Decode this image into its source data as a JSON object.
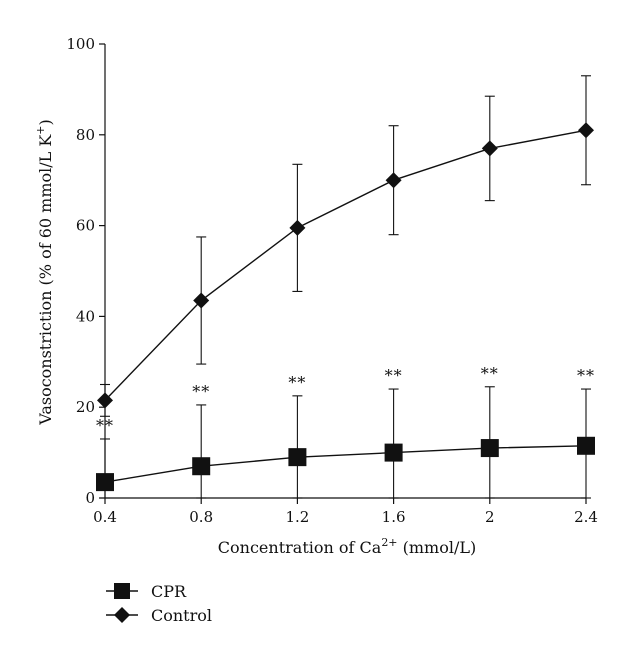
{
  "chart_data": {
    "type": "line",
    "xlabel": {
      "prefix": "Concentration of Ca",
      "sup": "2+",
      "suffix": " (mmol/L)"
    },
    "ylabel": {
      "prefix": "Vasoconstriction (% of 60 mmol/L K",
      "sup": "+",
      "suffix": ")"
    },
    "x": [
      0.4,
      0.8,
      1.2,
      1.6,
      2,
      2.4
    ],
    "x_tick_labels": [
      "0.4",
      "0.8",
      "1.2",
      "1.6",
      "2",
      "2.4"
    ],
    "xlim": [
      0.4,
      2.4
    ],
    "ylim": [
      0,
      100
    ],
    "y_ticks": [
      0,
      20,
      40,
      60,
      80,
      100
    ],
    "y_tick_labels": [
      "0",
      "20",
      "40",
      "60",
      "80",
      "100"
    ],
    "grid": false,
    "legend_position": "bottom-left",
    "series": [
      {
        "name": "CPR",
        "marker": "square",
        "values": [
          3.5,
          7,
          9,
          10,
          11,
          11.5
        ],
        "error": [
          9.5,
          13.5,
          13.5,
          14,
          13.5,
          12.5
        ],
        "annotations": [
          "**",
          "**",
          "**",
          "**",
          "**",
          "**"
        ]
      },
      {
        "name": "Control",
        "marker": "diamond",
        "values": [
          21.5,
          43.5,
          59.5,
          70,
          77,
          81
        ],
        "error": [
          3.5,
          14,
          14,
          12,
          11.5,
          12
        ]
      }
    ]
  }
}
